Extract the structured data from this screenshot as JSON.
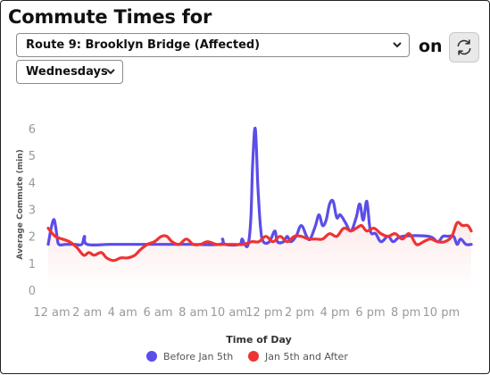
{
  "header": {
    "title": "Commute Times for",
    "route_selected": "Route 9: Brooklyn Bridge (Affected)",
    "on_label": "on",
    "day_selected": "Wednesdays",
    "refresh_icon": "refresh-icon"
  },
  "chart_data": {
    "type": "line",
    "xlabel": "Time of Day",
    "ylabel": "Average Commute (min)",
    "ylim": [
      0,
      6.3
    ],
    "yticks": [
      0,
      1,
      2,
      3,
      4,
      5,
      6
    ],
    "xlim": [
      0,
      23.9
    ],
    "x_tick_labels": [
      "12 am",
      "2 am",
      "4 am",
      "6 am",
      "8 am",
      "10 am",
      "12 pm",
      "2 pm",
      "4 pm",
      "6 pm",
      "8 pm",
      "10 pm"
    ],
    "x_tick_hours": [
      0,
      2,
      4,
      6,
      8,
      10,
      12,
      14,
      16,
      18,
      20,
      22
    ],
    "grid": false,
    "legend_position": "bottom",
    "series": [
      {
        "name": "Before Jan 5th",
        "color": "#5b4de8",
        "points": [
          [
            0,
            1.7
          ],
          [
            0.2,
            2.4
          ],
          [
            0.35,
            2.6
          ],
          [
            0.5,
            2.0
          ],
          [
            0.6,
            1.7
          ],
          [
            1.0,
            1.7
          ],
          [
            1.5,
            1.7
          ],
          [
            1.9,
            1.7
          ],
          [
            2.05,
            2.0
          ],
          [
            2.2,
            1.7
          ],
          [
            3.5,
            1.7
          ],
          [
            5.0,
            1.7
          ],
          [
            6.5,
            1.7
          ],
          [
            8.0,
            1.7
          ],
          [
            9.7,
            1.7
          ],
          [
            9.85,
            1.9
          ],
          [
            10.0,
            1.7
          ],
          [
            10.8,
            1.7
          ],
          [
            10.95,
            1.9
          ],
          [
            11.1,
            1.7
          ],
          [
            11.3,
            1.7
          ],
          [
            11.45,
            2.7
          ],
          [
            11.55,
            4.7
          ],
          [
            11.7,
            6.0
          ],
          [
            11.85,
            3.8
          ],
          [
            12.0,
            2.3
          ],
          [
            12.15,
            1.8
          ],
          [
            12.5,
            1.8
          ],
          [
            12.8,
            2.2
          ],
          [
            12.95,
            1.8
          ],
          [
            13.3,
            1.8
          ],
          [
            13.5,
            2.0
          ],
          [
            13.7,
            1.8
          ],
          [
            14.0,
            2.0
          ],
          [
            14.3,
            2.4
          ],
          [
            14.6,
            2.0
          ],
          [
            14.8,
            1.9
          ],
          [
            15.1,
            2.4
          ],
          [
            15.3,
            2.8
          ],
          [
            15.5,
            2.4
          ],
          [
            15.7,
            2.6
          ],
          [
            15.9,
            3.2
          ],
          [
            16.1,
            3.3
          ],
          [
            16.3,
            2.7
          ],
          [
            16.5,
            2.8
          ],
          [
            16.8,
            2.5
          ],
          [
            17.1,
            2.2
          ],
          [
            17.4,
            2.7
          ],
          [
            17.6,
            3.2
          ],
          [
            17.8,
            2.6
          ],
          [
            18.0,
            3.3
          ],
          [
            18.2,
            2.2
          ],
          [
            18.5,
            2.1
          ],
          [
            18.8,
            1.8
          ],
          [
            19.2,
            2.0
          ],
          [
            19.5,
            1.8
          ],
          [
            20.0,
            2.0
          ],
          [
            21.5,
            2.0
          ],
          [
            22.0,
            1.8
          ],
          [
            22.3,
            2.0
          ],
          [
            22.6,
            2.0
          ],
          [
            22.9,
            2.0
          ],
          [
            23.1,
            1.7
          ],
          [
            23.3,
            1.9
          ],
          [
            23.6,
            1.7
          ],
          [
            23.9,
            1.7
          ]
        ]
      },
      {
        "name": "Jan 5th and After",
        "color": "#ee3333",
        "points": [
          [
            0,
            2.3
          ],
          [
            0.4,
            2.0
          ],
          [
            0.8,
            1.9
          ],
          [
            1.2,
            1.8
          ],
          [
            1.6,
            1.6
          ],
          [
            2.0,
            1.3
          ],
          [
            2.3,
            1.4
          ],
          [
            2.6,
            1.3
          ],
          [
            3.0,
            1.4
          ],
          [
            3.3,
            1.2
          ],
          [
            3.7,
            1.1
          ],
          [
            4.1,
            1.2
          ],
          [
            4.5,
            1.2
          ],
          [
            4.9,
            1.3
          ],
          [
            5.2,
            1.5
          ],
          [
            5.6,
            1.7
          ],
          [
            6.0,
            1.8
          ],
          [
            6.4,
            2.0
          ],
          [
            6.7,
            2.0
          ],
          [
            7.0,
            1.8
          ],
          [
            7.4,
            1.7
          ],
          [
            7.8,
            1.9
          ],
          [
            8.2,
            1.7
          ],
          [
            8.6,
            1.7
          ],
          [
            9.0,
            1.8
          ],
          [
            9.5,
            1.7
          ],
          [
            10.0,
            1.7
          ],
          [
            10.5,
            1.7
          ],
          [
            11.0,
            1.7
          ],
          [
            11.5,
            1.8
          ],
          [
            11.9,
            1.8
          ],
          [
            12.3,
            2.0
          ],
          [
            12.7,
            1.8
          ],
          [
            13.1,
            2.0
          ],
          [
            13.5,
            1.8
          ],
          [
            13.9,
            2.0
          ],
          [
            14.3,
            2.0
          ],
          [
            14.7,
            1.9
          ],
          [
            15.1,
            1.9
          ],
          [
            15.5,
            1.9
          ],
          [
            15.9,
            2.1
          ],
          [
            16.3,
            2.0
          ],
          [
            16.7,
            2.3
          ],
          [
            17.1,
            2.2
          ],
          [
            17.4,
            2.3
          ],
          [
            17.7,
            2.4
          ],
          [
            18.0,
            2.2
          ],
          [
            18.4,
            2.3
          ],
          [
            18.8,
            2.1
          ],
          [
            19.2,
            2.0
          ],
          [
            19.6,
            2.1
          ],
          [
            20.0,
            1.9
          ],
          [
            20.4,
            2.1
          ],
          [
            20.8,
            1.7
          ],
          [
            21.2,
            1.8
          ],
          [
            21.6,
            1.9
          ],
          [
            22.0,
            1.8
          ],
          [
            22.4,
            1.8
          ],
          [
            22.8,
            2.0
          ],
          [
            23.1,
            2.5
          ],
          [
            23.4,
            2.4
          ],
          [
            23.7,
            2.4
          ],
          [
            23.9,
            2.2
          ]
        ]
      }
    ]
  }
}
